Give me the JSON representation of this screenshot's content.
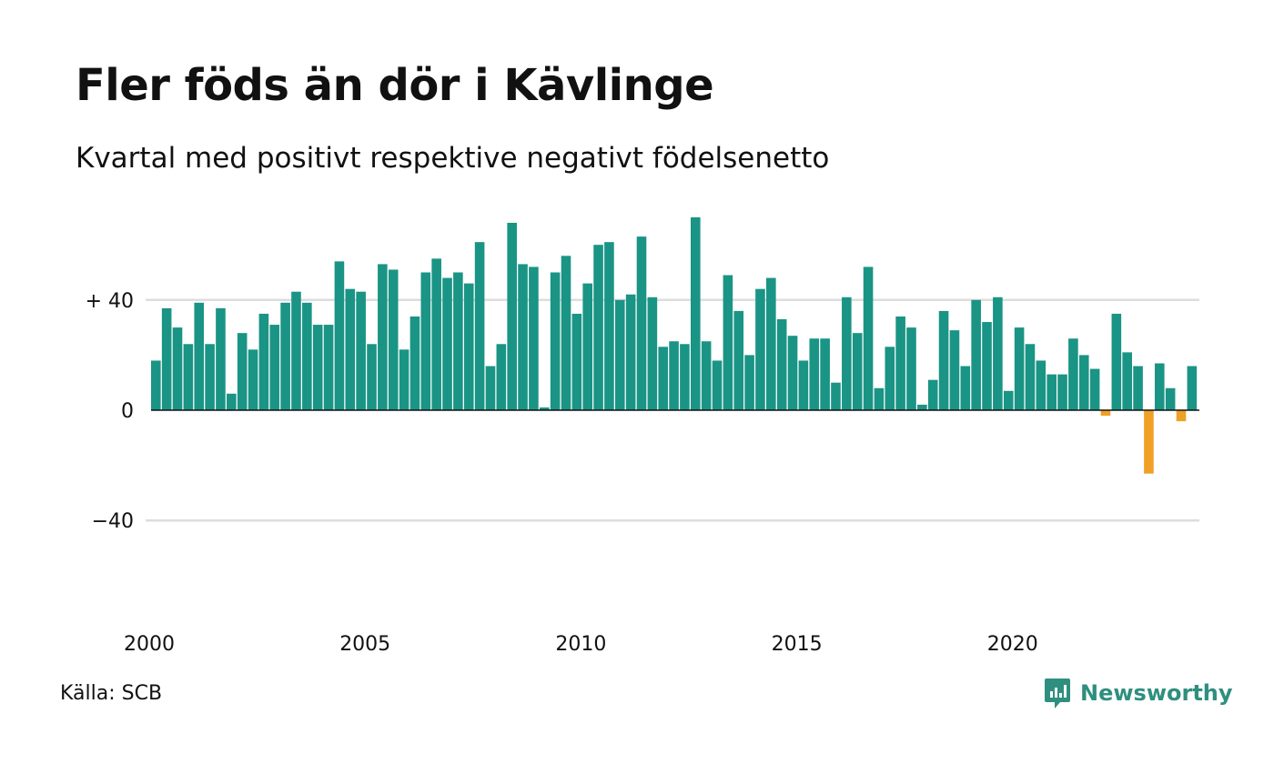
{
  "title": "Fler föds än dör i Kävlinge",
  "subtitle": "Kvartal med positivt respektive negativt födelsenetto",
  "source": "Källa: SCB",
  "brand": "Newsworthy",
  "colors": {
    "positive": "#1a9485",
    "negative": "#f0a024",
    "grid": "#dddddd",
    "brand": "#2f8f7f"
  },
  "chart_data": {
    "type": "bar",
    "x_start": "2000 Q1",
    "values": [
      18,
      37,
      30,
      24,
      39,
      24,
      37,
      6,
      28,
      22,
      35,
      31,
      39,
      43,
      39,
      31,
      31,
      54,
      44,
      43,
      24,
      53,
      51,
      22,
      34,
      50,
      55,
      48,
      50,
      46,
      61,
      16,
      24,
      68,
      53,
      52,
      1,
      50,
      56,
      35,
      46,
      60,
      61,
      40,
      42,
      63,
      41,
      23,
      25,
      24,
      70,
      25,
      18,
      49,
      36,
      20,
      44,
      48,
      33,
      27,
      18,
      26,
      26,
      10,
      41,
      28,
      52,
      8,
      23,
      34,
      30,
      2,
      11,
      36,
      29,
      16,
      40,
      32,
      41,
      7,
      30,
      24,
      18,
      13,
      13,
      26,
      20,
      15,
      -2,
      35,
      21,
      16,
      -23,
      17,
      8,
      -4,
      16
    ],
    "y_ticks": [
      40,
      0,
      -40
    ],
    "y_tick_labels": [
      "+ 40",
      "0",
      "−40"
    ],
    "ylim": [
      -70,
      70
    ],
    "x_tick_labels": [
      "2000",
      "2005",
      "2010",
      "2015",
      "2020"
    ]
  }
}
